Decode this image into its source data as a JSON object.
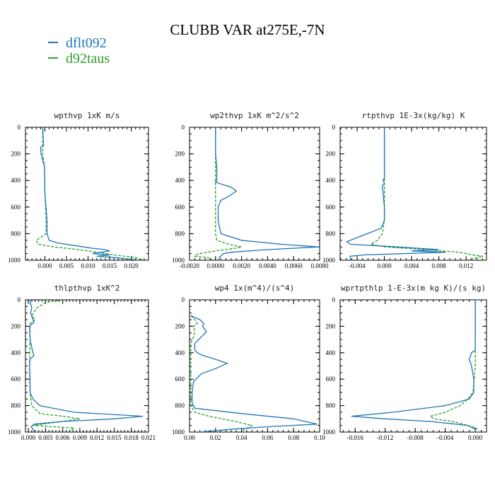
{
  "title": "CLUBB VAR at275E,-7N",
  "legend": [
    {
      "name": "dflt092",
      "color": "#1f77b4"
    },
    {
      "name": "d92taus",
      "color": "#2ca02c"
    }
  ],
  "chart_data": [
    {
      "type": "line",
      "title": "wpthvp   1xK m/s",
      "ylim": [
        1000,
        0
      ],
      "yticks": [
        0,
        200,
        400,
        600,
        800,
        1000
      ],
      "xlim": [
        -0.0045,
        0.024
      ],
      "xticks": [
        0.0,
        0.005,
        0.01,
        0.015,
        0.02
      ],
      "xtick_labels": [
        "0.000",
        "0.005",
        "0.010",
        "0.015",
        "0.020"
      ],
      "series": [
        {
          "name": "dflt092",
          "y": [
            0,
            140,
            150,
            200,
            300,
            500,
            700,
            800,
            850,
            870,
            890,
            910,
            920,
            930,
            950,
            960,
            970,
            980,
            1000
          ],
          "x": [
            -0.0005,
            -0.0003,
            -0.001,
            -0.0009,
            -0.0001,
            0.0,
            0.0005,
            0.0005,
            0.001,
            0.003,
            0.007,
            0.011,
            0.014,
            0.015,
            0.011,
            0.015,
            0.012,
            0.016,
            0.022
          ]
        },
        {
          "name": "d92taus",
          "y": [
            0,
            150,
            200,
            300,
            500,
            700,
            800,
            850,
            880,
            900,
            920,
            940,
            960,
            980,
            1000
          ],
          "x": [
            -0.0005,
            -0.0005,
            -0.0005,
            -0.0001,
            0.0,
            0.0003,
            0.0003,
            -0.002,
            -0.0015,
            0.002,
            0.008,
            0.012,
            0.016,
            0.021,
            0.023
          ]
        }
      ]
    },
    {
      "type": "line",
      "title": "wp2thvp   1xK m^2/s^2",
      "ylim": [
        1000,
        0
      ],
      "yticks": [
        0,
        200,
        400,
        600,
        800,
        1000
      ],
      "xlim": [
        -0.002,
        0.008
      ],
      "xticks": [
        -0.002,
        0.0,
        0.002,
        0.004,
        0.006,
        0.008
      ],
      "xtick_labels": [
        "-0.0020",
        "0.0000",
        "0.0020",
        "0.0040",
        "0.0060",
        "0.0080"
      ],
      "series": [
        {
          "name": "dflt092",
          "y": [
            0,
            200,
            300,
            400,
            410,
            430,
            450,
            480,
            520,
            550,
            600,
            700,
            800,
            850,
            880,
            900,
            920,
            940,
            950,
            960,
            970,
            980,
            1000
          ],
          "x": [
            0.0,
            0.0,
            0.0001,
            0.0001,
            0.0,
            0.0005,
            0.0012,
            0.0016,
            0.001,
            0.0004,
            0.0002,
            0.0002,
            0.0004,
            0.002,
            0.005,
            0.0079,
            0.004,
            0.0012,
            0.0006,
            0.0005,
            0.0004,
            0.0003,
            0.0002
          ]
        },
        {
          "name": "d92taus",
          "y": [
            0,
            200,
            400,
            600,
            800,
            850,
            880,
            900,
            910,
            930,
            950,
            960,
            970,
            980,
            1000
          ],
          "x": [
            0.0,
            0.0,
            0.0,
            0.0,
            0.0,
            0.0001,
            0.001,
            0.002,
            0.0015,
            0.0,
            -0.0012,
            -0.0015,
            -0.0016,
            -0.0006,
            -0.0002
          ]
        }
      ]
    },
    {
      "type": "line",
      "title": "rtpthvp   1E-3x(kg/kg) K",
      "ylim": [
        1000,
        0
      ],
      "yticks": [
        0,
        200,
        400,
        600,
        800,
        1000
      ],
      "xlim": [
        -0.0065,
        0.015
      ],
      "xticks": [
        -0.004,
        0.0,
        0.004,
        0.008,
        0.012
      ],
      "xtick_labels": [
        "-0.004",
        "0.000",
        "0.004",
        "0.008",
        "0.012"
      ],
      "series": [
        {
          "name": "dflt092",
          "y": [
            0,
            380,
            400,
            420,
            440,
            600,
            700,
            760,
            800,
            830,
            860,
            880,
            900,
            920,
            930,
            940,
            960,
            970,
            1000
          ],
          "x": [
            0.0,
            0.0,
            -0.0002,
            0.0,
            -0.0003,
            0.0,
            0.0,
            -0.0005,
            -0.0025,
            -0.004,
            -0.0055,
            -0.005,
            0.002,
            0.008,
            0.004,
            0.009,
            -0.003,
            -0.005,
            -0.005
          ]
        },
        {
          "name": "d92taus",
          "y": [
            0,
            400,
            600,
            700,
            800,
            850,
            880,
            900,
            920,
            940,
            960,
            970,
            1000
          ],
          "x": [
            0.0,
            0.0,
            0.0,
            0.0,
            -0.0003,
            -0.001,
            -0.002,
            0.0,
            0.006,
            0.011,
            0.013,
            0.0145,
            0.012
          ]
        }
      ]
    },
    {
      "type": "line",
      "title": "thlpthvp   1xK^2",
      "ylim": [
        1000,
        0
      ],
      "yticks": [
        0,
        200,
        400,
        600,
        800,
        1000
      ],
      "xlim": [
        -0.0005,
        0.021
      ],
      "xticks": [
        0.0,
        0.003,
        0.006,
        0.009,
        0.012,
        0.015,
        0.018,
        0.021
      ],
      "xtick_labels": [
        "0.000",
        "0.003",
        "0.006",
        "0.009",
        "0.012",
        "0.015",
        "0.018",
        "0.021"
      ],
      "series": [
        {
          "name": "dflt092",
          "y": [
            0,
            60,
            100,
            150,
            170,
            200,
            300,
            400,
            420,
            450,
            500,
            600,
            700,
            750,
            800,
            850,
            880,
            900,
            920,
            940,
            960,
            1000
          ],
          "x": [
            0.0002,
            0.0006,
            0.0004,
            0.0008,
            0.001,
            0.0002,
            0.0003,
            0.0008,
            0.001,
            0.0003,
            0.0002,
            0.0003,
            0.0003,
            0.0008,
            0.002,
            0.008,
            0.02,
            0.015,
            0.006,
            0.001,
            0.0005,
            0.0012
          ]
        },
        {
          "name": "d92taus",
          "y": [
            0,
            20,
            60,
            120,
            150,
            180,
            300,
            500,
            700,
            800,
            860,
            880,
            900,
            920,
            950,
            970,
            1000
          ],
          "x": [
            0.006,
            0.003,
            0.0015,
            0.0006,
            0.0012,
            0.0003,
            0.0003,
            0.0002,
            0.0003,
            0.0006,
            0.002,
            0.006,
            0.009,
            0.006,
            0.0008,
            0.008,
            0.007
          ]
        }
      ]
    },
    {
      "type": "line",
      "title": "wp4   1x(m^4)/(s^4)",
      "ylim": [
        1000,
        0
      ],
      "yticks": [
        0,
        200,
        400,
        600,
        800,
        1000
      ],
      "xlim": [
        0.0,
        0.1
      ],
      "xticks": [
        0.0,
        0.02,
        0.04,
        0.06,
        0.08,
        0.1
      ],
      "xtick_labels": [
        "0.00",
        "0.02",
        "0.04",
        "0.06",
        "0.08",
        "0.10"
      ],
      "series": [
        {
          "name": "dflt092",
          "y": [
            120,
            150,
            180,
            200,
            240,
            280,
            330,
            380,
            400,
            420,
            450,
            480,
            520,
            560,
            620,
            700,
            780,
            820,
            860,
            900,
            940,
            960,
            980,
            1000
          ],
          "x": [
            0.001,
            0.008,
            0.011,
            0.01,
            0.013,
            0.009,
            0.004,
            0.004,
            0.006,
            0.01,
            0.02,
            0.029,
            0.02,
            0.009,
            0.003,
            0.002,
            0.002,
            0.004,
            0.04,
            0.08,
            0.098,
            0.06,
            0.03,
            0.008
          ]
        },
        {
          "name": "d92taus",
          "y": [
            120,
            150,
            180,
            200,
            240,
            280,
            330,
            380,
            500,
            700,
            800,
            850,
            880,
            920,
            950,
            980,
            1000
          ],
          "x": [
            0.001,
            0.004,
            0.006,
            0.003,
            0.004,
            0.003,
            0.001,
            0.001,
            0.001,
            0.001,
            0.001,
            0.004,
            0.015,
            0.035,
            0.048,
            0.042,
            0.04
          ]
        }
      ]
    },
    {
      "type": "line",
      "title": "wprtpthlp   1-E-3x(m kg K)/(s kg)",
      "ylim": [
        1000,
        0
      ],
      "yticks": [
        0,
        200,
        400,
        600,
        800,
        1000
      ],
      "xlim": [
        -0.018,
        0.0015
      ],
      "xticks": [
        -0.016,
        -0.012,
        -0.008,
        -0.004,
        0.0
      ],
      "xtick_labels": [
        "-0.016",
        "-0.012",
        "-0.008",
        "-0.004",
        "0.000"
      ],
      "series": [
        {
          "name": "dflt092",
          "y": [
            0,
            380,
            400,
            450,
            500,
            600,
            700,
            750,
            800,
            850,
            880,
            900,
            920,
            950,
            980,
            1000
          ],
          "x": [
            0.0,
            0.0,
            -0.0005,
            -0.0008,
            -0.0005,
            -0.0002,
            -0.0002,
            -0.0008,
            -0.004,
            -0.011,
            -0.0165,
            -0.012,
            -0.006,
            -0.001,
            0.0,
            0.0
          ]
        },
        {
          "name": "d92taus",
          "y": [
            0,
            500,
            700,
            750,
            800,
            850,
            880,
            900,
            920,
            950,
            970,
            1000
          ],
          "x": [
            0.0,
            0.0,
            -0.0003,
            -0.001,
            -0.002,
            -0.004,
            -0.006,
            -0.0055,
            -0.003,
            -0.001,
            0.0002,
            0.0
          ]
        }
      ]
    }
  ]
}
